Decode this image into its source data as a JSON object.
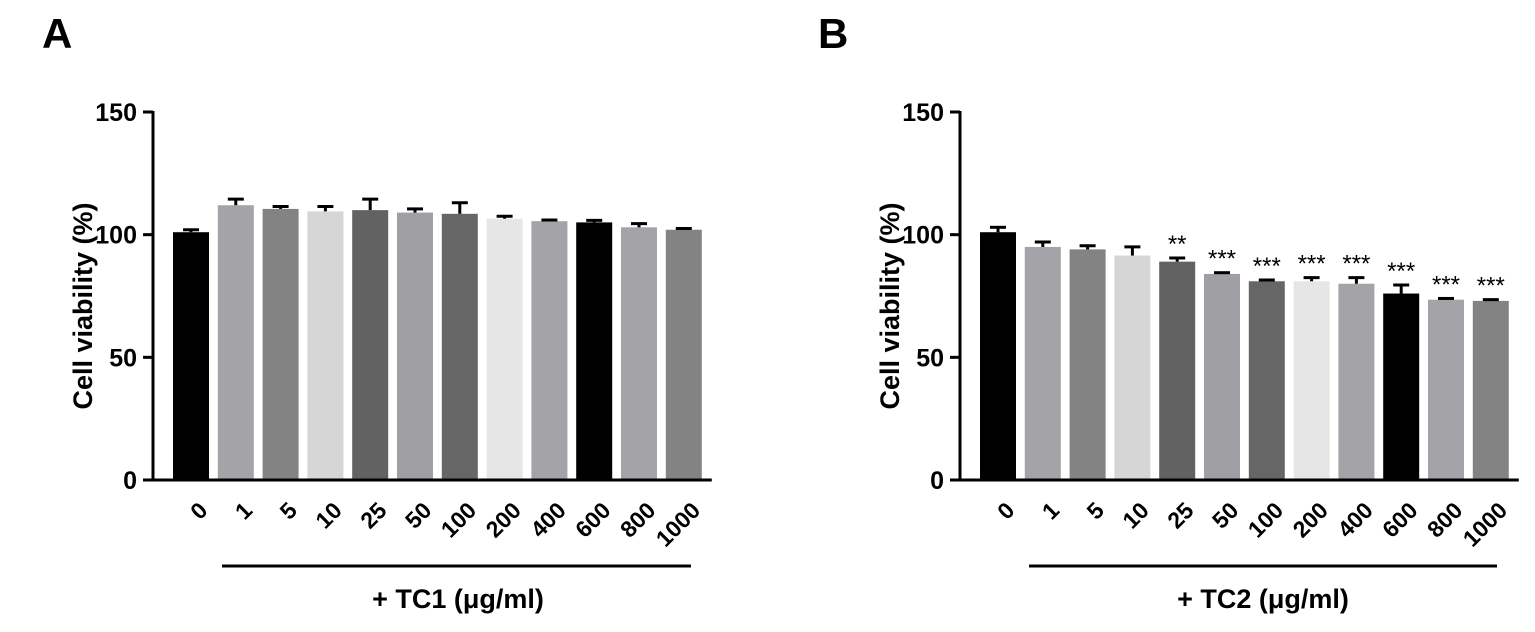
{
  "chart_data": [
    {
      "type": "bar",
      "panel_label": "A",
      "title": "",
      "ylabel": "Cell viability (%)",
      "xlabel": "+ TC1 (μg/ml)",
      "ylim": [
        0,
        150
      ],
      "yticks": [
        "0",
        "50",
        "100",
        "150"
      ],
      "categories": [
        "0",
        "1",
        "5",
        "10",
        "25",
        "50",
        "100",
        "200",
        "400",
        "600",
        "800",
        "1000"
      ],
      "values": [
        101,
        112,
        110.5,
        109.5,
        110,
        109,
        108.5,
        106.5,
        105.5,
        105,
        103,
        102
      ],
      "errors": [
        1,
        2.5,
        1,
        2,
        4.5,
        1.5,
        4.5,
        1,
        0.5,
        0.8,
        1.5,
        0.5
      ],
      "significance": [
        "",
        "",
        "",
        "",
        "",
        "",
        "",
        "",
        "",
        "",
        "",
        ""
      ],
      "bar_colors": [
        "#000000",
        "#a3a3a8",
        "#838383",
        "#d6d6d6",
        "#626262",
        "#a0a0a4",
        "#666666",
        "#e6e6e6",
        "#a3a3a8",
        "#000000",
        "#a3a3a8",
        "#838383"
      ]
    },
    {
      "type": "bar",
      "panel_label": "B",
      "title": "",
      "ylabel": "Cell viability (%)",
      "xlabel": "+ TC2 (μg/ml)",
      "ylim": [
        0,
        150
      ],
      "yticks": [
        "0",
        "50",
        "100",
        "150"
      ],
      "categories": [
        "0",
        "1",
        "5",
        "10",
        "25",
        "50",
        "100",
        "200",
        "400",
        "600",
        "800",
        "1000"
      ],
      "values": [
        101,
        95,
        94,
        91.5,
        89,
        84,
        81,
        81,
        80,
        76,
        73.5,
        73
      ],
      "errors": [
        2,
        2,
        1.5,
        3.5,
        1.5,
        0.5,
        0.5,
        1.5,
        2.5,
        3.5,
        0.5,
        0.5
      ],
      "significance": [
        "",
        "",
        "",
        "",
        "**",
        "***",
        "***",
        "***",
        "***",
        "***",
        "***",
        "***"
      ],
      "bar_colors": [
        "#000000",
        "#a3a3a8",
        "#838383",
        "#d6d6d6",
        "#626262",
        "#a0a0a4",
        "#666666",
        "#e6e6e6",
        "#a3a3a8",
        "#000000",
        "#a3a3a8",
        "#838383"
      ]
    }
  ]
}
